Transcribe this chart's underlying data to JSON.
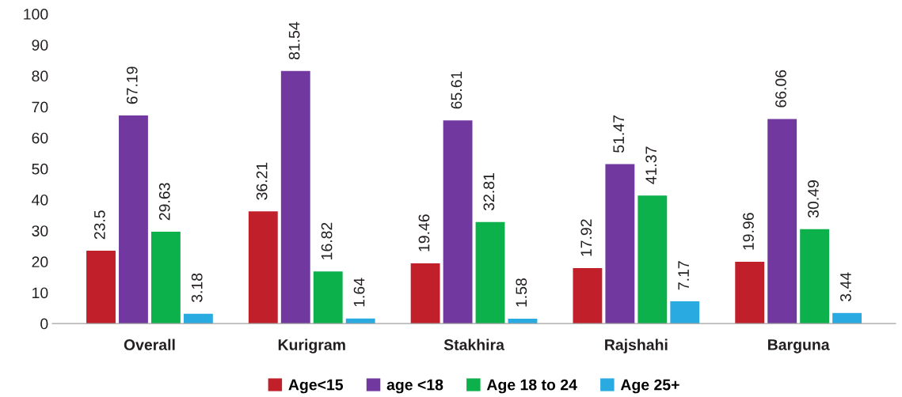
{
  "chart_data": {
    "type": "bar",
    "categories": [
      "Overall",
      "Kurigram",
      "Stakhira",
      "Rajshahi",
      "Barguna"
    ],
    "series": [
      {
        "name": "Age<15",
        "color": "#c1202a",
        "values": [
          23.5,
          36.21,
          19.46,
          17.92,
          19.96
        ]
      },
      {
        "name": "age <18",
        "color": "#7139a0",
        "values": [
          67.19,
          81.54,
          65.61,
          51.47,
          66.06
        ]
      },
      {
        "name": "Age 18 to 24",
        "color": "#0db14b",
        "values": [
          29.63,
          16.82,
          32.81,
          41.37,
          30.49
        ]
      },
      {
        "name": "Age 25+",
        "color": "#29abe2",
        "values": [
          3.18,
          1.64,
          1.58,
          7.17,
          3.44
        ]
      }
    ],
    "ylim": [
      0,
      100
    ],
    "yticks": [
      0,
      10,
      20,
      30,
      40,
      50,
      60,
      70,
      80,
      90,
      100
    ],
    "data_labels": true,
    "grid": false,
    "legend": "bottom"
  }
}
